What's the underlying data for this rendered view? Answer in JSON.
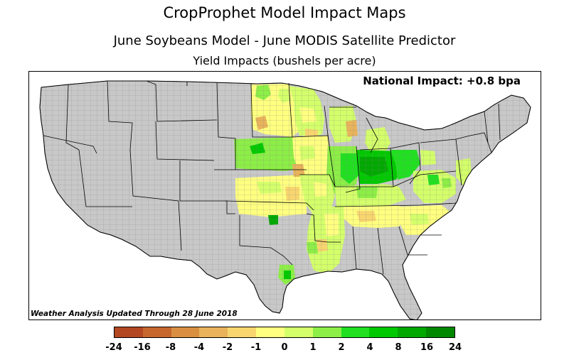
{
  "title": "CropProphet Model Impact Maps",
  "subtitle": "June Soybeans Model - June MODIS Satellite Predictor",
  "subtitle2": "Yield Impacts (bushels per acre)",
  "national_impact": "National Impact: +0.8 bpa",
  "updated_note": "Weather Analysis Updated Through 28 June 2018",
  "legend": {
    "ticks": [
      "-24",
      "-16",
      "-8",
      "-4",
      "-2",
      "-1",
      "0",
      "1",
      "2",
      "4",
      "8",
      "16",
      "24"
    ],
    "colors": [
      "#b34722",
      "#c6672e",
      "#d88f42",
      "#e8b35a",
      "#f8d56e",
      "#ffff80",
      "#d4ff6a",
      "#8cee46",
      "#20e020",
      "#00c800",
      "#00a800",
      "#008800"
    ]
  },
  "colors": {
    "no_data": "#c8c8c8",
    "county_line": "#8a8a8a",
    "state_line": "#000000"
  }
}
